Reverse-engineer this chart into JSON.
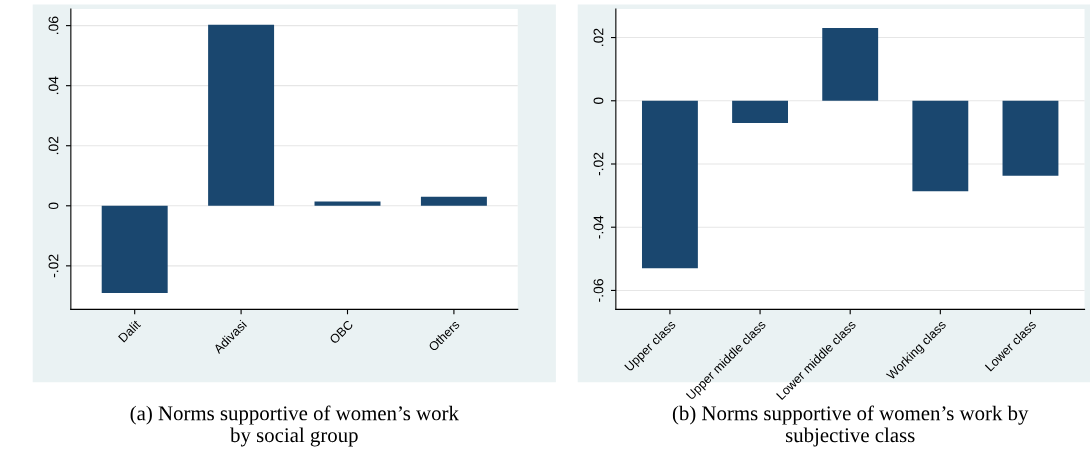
{
  "chart_data": [
    {
      "type": "bar",
      "title": "(a) Norms supportive of women’s work\nby social group",
      "categories": [
        "Dalit",
        "Adivasi",
        "OBC",
        "Others"
      ],
      "values": [
        -0.029,
        0.0603,
        0.0014,
        0.003
      ],
      "color": "#1a476f",
      "ylim": [
        -0.0345,
        0.0655
      ],
      "yticks": [
        {
          "value": -0.02,
          "label": "-.02"
        },
        0,
        {
          "value": 0.02,
          "label": ".02"
        },
        {
          "value": 0.04,
          "label": ".04"
        },
        {
          "value": 0.06,
          "label": ".06"
        }
      ],
      "grid": "y"
    },
    {
      "type": "bar",
      "title": "(b) Norms supportive of women’s work by\nsubjective class",
      "categories": [
        "Upper class",
        "Upper middle class",
        "Lower middle class",
        "Working class",
        "Lower class"
      ],
      "values": [
        -0.053,
        -0.007,
        0.023,
        -0.0286,
        -0.0237
      ],
      "color": "#1a476f",
      "ylim": [
        -0.066,
        0.029
      ],
      "yticks": [
        {
          "value": -0.06,
          "label": "-.06"
        },
        {
          "value": -0.04,
          "label": "-.04"
        },
        {
          "value": -0.02,
          "label": "-.02"
        },
        0,
        {
          "value": 0.02,
          "label": ".02"
        }
      ],
      "grid": "y"
    }
  ]
}
